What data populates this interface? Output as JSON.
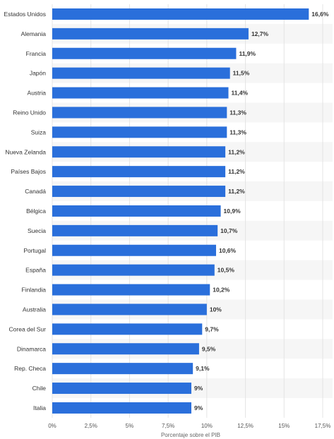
{
  "chart_data": {
    "type": "bar",
    "orientation": "horizontal",
    "categories": [
      "Estados Unidos",
      "Alemania",
      "Francia",
      "Japón",
      "Austria",
      "Reino Unido",
      "Suiza",
      "Nueva Zelanda",
      "Países Bajos",
      "Canadá",
      "Bélgica",
      "Suecia",
      "Portugal",
      "España",
      "Finlandia",
      "Australia",
      "Corea del Sur",
      "Dinamarca",
      "Rep. Checa",
      "Chile",
      "Italia"
    ],
    "values": [
      16.6,
      12.7,
      11.9,
      11.5,
      11.4,
      11.3,
      11.3,
      11.2,
      11.2,
      11.2,
      10.9,
      10.7,
      10.6,
      10.5,
      10.2,
      10.0,
      9.7,
      9.5,
      9.1,
      9.0,
      9.0
    ],
    "value_labels": [
      "16,6%",
      "12,7%",
      "11,9%",
      "11,5%",
      "11,4%",
      "11,3%",
      "11,3%",
      "11,2%",
      "11,2%",
      "11,2%",
      "10,9%",
      "10,7%",
      "10,6%",
      "10,5%",
      "10,2%",
      "10%",
      "9,7%",
      "9,5%",
      "9,1%",
      "9%",
      "9%"
    ],
    "xlim": [
      0,
      17.5
    ],
    "ticks": [
      0,
      2.5,
      5,
      7.5,
      10,
      12.5,
      15,
      17.5
    ],
    "tick_labels": [
      "0%",
      "2,5%",
      "5%",
      "7,5%",
      "10%",
      "12,5%",
      "15%",
      "17,5%"
    ],
    "xlabel": "Porcentaje sobre el PIB",
    "ylabel": "",
    "title": "",
    "grid": true,
    "bar_color": "#2a6fdb",
    "stripe_color": "#f6f6f6"
  }
}
